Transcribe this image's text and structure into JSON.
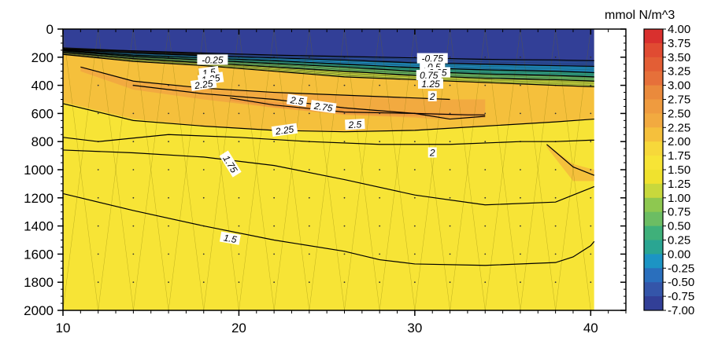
{
  "chart_data": {
    "type": "heatmap",
    "title": "",
    "xlabel": "",
    "ylabel": "",
    "xlim": [
      10,
      42
    ],
    "ylim": [
      2000,
      0
    ],
    "x_ticks": [
      10,
      20,
      30,
      40
    ],
    "x_tick_labels": [
      "10",
      "20",
      "30",
      "40"
    ],
    "y_ticks": [
      0,
      200,
      400,
      600,
      800,
      1000,
      1200,
      1400,
      1600,
      1800,
      2000
    ],
    "y_tick_labels": [
      "0",
      "200",
      "400",
      "600",
      "800",
      "1000",
      "1200",
      "1400",
      "1600",
      "1800",
      "2000"
    ],
    "data_x_max": 40.2,
    "colorbar": {
      "unit": "mmol N/m^3",
      "labels": [
        "4.00",
        "3.75",
        "3.50",
        "3.25",
        "3.00",
        "2.75",
        "2.50",
        "2.25",
        "2.00",
        "1.75",
        "1.50",
        "1.25",
        "1.00",
        "0.75",
        "0.50",
        "0.25",
        "0.00",
        "-0.25",
        "-0.50",
        "-0.75",
        "-7.00"
      ],
      "colors": [
        "#d9302e",
        "#e04b32",
        "#e35e35",
        "#e6703a",
        "#ea8a3c",
        "#ef9b3f",
        "#f2aa40",
        "#f5c03c",
        "#f7d83a",
        "#f7e436",
        "#f0e22e",
        "#c8d83c",
        "#8ec850",
        "#6cbd63",
        "#3fb07a",
        "#2aa592",
        "#1c94c4",
        "#2a6fbd",
        "#3455a9",
        "#323f97"
      ]
    },
    "field_levels": [
      {
        "range": [
          -7.0,
          -0.75
        ],
        "color": "#323f97",
        "depth": [
          0,
          150
        ]
      },
      {
        "range": [
          -0.75,
          0.0
        ],
        "color": "#2a6fbd",
        "depth": [
          150,
          230
        ]
      },
      {
        "range": [
          0.0,
          1.0
        ],
        "color": "#3fb07a",
        "depth": [
          230,
          300
        ]
      },
      {
        "range": [
          1.0,
          1.75
        ],
        "color": "#c8d83c",
        "depth": [
          300,
          350
        ]
      },
      {
        "range": [
          1.75,
          2.25
        ],
        "color": "#f7e436",
        "depth": [
          350,
          1000
        ]
      },
      {
        "range": [
          2.25,
          2.5
        ],
        "color": "#f5c03c",
        "depth": [
          380,
          700
        ]
      },
      {
        "range": [
          2.5,
          2.75
        ],
        "color": "#f2aa40",
        "depth": [
          420,
          640
        ]
      },
      {
        "range": [
          2.75,
          3.0
        ],
        "color": "#ef9b3f",
        "depth": [
          480,
          560
        ]
      }
    ],
    "contours": [
      {
        "level": 1.5,
        "points": [
          [
            10,
            1170
          ],
          [
            14,
            1290
          ],
          [
            18,
            1400
          ],
          [
            22,
            1500
          ],
          [
            26,
            1580
          ],
          [
            28,
            1640
          ],
          [
            30,
            1670
          ],
          [
            34,
            1680
          ],
          [
            38,
            1660
          ],
          [
            39,
            1620
          ],
          [
            40,
            1540
          ],
          [
            40.2,
            1510
          ]
        ]
      },
      {
        "level": 1.75,
        "points": [
          [
            10,
            860
          ],
          [
            14,
            880
          ],
          [
            18,
            910
          ],
          [
            22,
            970
          ],
          [
            26,
            1070
          ],
          [
            30,
            1180
          ],
          [
            34,
            1250
          ],
          [
            38,
            1230
          ],
          [
            40,
            1130
          ],
          [
            40.2,
            1120
          ]
        ]
      },
      {
        "level": 2.0,
        "points": [
          [
            10,
            770
          ],
          [
            12,
            800
          ],
          [
            16,
            750
          ],
          [
            20,
            770
          ],
          [
            24,
            800
          ],
          [
            28,
            820
          ],
          [
            32,
            820
          ],
          [
            36,
            800
          ],
          [
            38,
            800
          ],
          [
            40,
            790
          ],
          [
            40.2,
            790
          ]
        ]
      },
      {
        "level": 2.0,
        "points": [
          [
            37.5,
            820
          ],
          [
            39,
            980
          ],
          [
            40.2,
            1040
          ]
        ]
      },
      {
        "level": 2.25,
        "points": [
          [
            10,
            530
          ],
          [
            14,
            650
          ],
          [
            18,
            690
          ],
          [
            22,
            720
          ],
          [
            26,
            730
          ],
          [
            30,
            720
          ],
          [
            34,
            690
          ],
          [
            38,
            660
          ],
          [
            40.2,
            640
          ]
        ]
      },
      {
        "level": 2.25,
        "points": [
          [
            11,
            270
          ],
          [
            14,
            370
          ],
          [
            18,
            420
          ],
          [
            22,
            450
          ],
          [
            26,
            470
          ],
          [
            30,
            490
          ],
          [
            32,
            500
          ]
        ]
      },
      {
        "level": 2.5,
        "points": [
          [
            14,
            400
          ],
          [
            18,
            460
          ],
          [
            22,
            500
          ],
          [
            26,
            560
          ],
          [
            30,
            600
          ],
          [
            32,
            640
          ],
          [
            34,
            620
          ]
        ]
      },
      {
        "level": 2.75,
        "points": [
          [
            19.5,
            490
          ],
          [
            22,
            540
          ],
          [
            26,
            590
          ],
          [
            30,
            600
          ],
          [
            33,
            610
          ],
          [
            34,
            610
          ]
        ]
      },
      {
        "level": 1.75,
        "points": [
          [
            10,
            180
          ],
          [
            14,
            230
          ],
          [
            18,
            260
          ],
          [
            22,
            300
          ],
          [
            26,
            340
          ],
          [
            30,
            360
          ],
          [
            34,
            380
          ],
          [
            38,
            400
          ],
          [
            40.2,
            410
          ]
        ]
      },
      {
        "level": 1.25,
        "points": [
          [
            10,
            165
          ],
          [
            14,
            210
          ],
          [
            18,
            240
          ],
          [
            22,
            270
          ],
          [
            26,
            300
          ],
          [
            30,
            330
          ],
          [
            34,
            350
          ],
          [
            38,
            360
          ],
          [
            40.2,
            370
          ]
        ]
      },
      {
        "level": 0.75,
        "points": [
          [
            10,
            155
          ],
          [
            14,
            195
          ],
          [
            18,
            220
          ],
          [
            22,
            245
          ],
          [
            26,
            270
          ],
          [
            30,
            300
          ],
          [
            34,
            320
          ],
          [
            38,
            330
          ],
          [
            40.2,
            340
          ]
        ]
      },
      {
        "level": 0.25,
        "points": [
          [
            10,
            150
          ],
          [
            14,
            185
          ],
          [
            18,
            205
          ],
          [
            22,
            225
          ],
          [
            26,
            250
          ],
          [
            30,
            275
          ],
          [
            34,
            290
          ],
          [
            38,
            300
          ],
          [
            40.2,
            310
          ]
        ]
      },
      {
        "level": -0.25,
        "points": [
          [
            10,
            145
          ],
          [
            14,
            170
          ],
          [
            18,
            190
          ],
          [
            22,
            205
          ],
          [
            26,
            220
          ],
          [
            30,
            240
          ],
          [
            34,
            250
          ],
          [
            38,
            260
          ],
          [
            40.2,
            265
          ]
        ]
      },
      {
        "level": -0.75,
        "points": [
          [
            10,
            140
          ],
          [
            14,
            155
          ],
          [
            18,
            170
          ],
          [
            22,
            185
          ],
          [
            26,
            195
          ],
          [
            30,
            205
          ],
          [
            34,
            215
          ],
          [
            38,
            220
          ],
          [
            40.2,
            225
          ]
        ]
      }
    ],
    "contour_labels": [
      {
        "text": "-0.25",
        "x": 18.5,
        "y": 220,
        "rotate": 0
      },
      {
        "text": "1.5",
        "x": 18.3,
        "y": 310,
        "rotate": -8
      },
      {
        "text": "1.25",
        "x": 18.4,
        "y": 355,
        "rotate": -8
      },
      {
        "text": "2.25",
        "x": 18.0,
        "y": 395,
        "rotate": -8
      },
      {
        "text": "2.5",
        "x": 23.3,
        "y": 510,
        "rotate": 8
      },
      {
        "text": "2.75",
        "x": 24.8,
        "y": 555,
        "rotate": 8
      },
      {
        "text": "2.25",
        "x": 22.6,
        "y": 720,
        "rotate": -8
      },
      {
        "text": "2.5",
        "x": 26.6,
        "y": 680,
        "rotate": -3
      },
      {
        "text": "-0.75",
        "x": 31.0,
        "y": 210,
        "rotate": 0
      },
      {
        "text": "-0.5",
        "x": 31.0,
        "y": 270,
        "rotate": 0
      },
      {
        "text": "0.25",
        "x": 31.3,
        "y": 310,
        "rotate": 0
      },
      {
        "text": "0.75",
        "x": 30.8,
        "y": 330,
        "rotate": 0
      },
      {
        "text": "1.25",
        "x": 30.9,
        "y": 390,
        "rotate": 0
      },
      {
        "text": "2",
        "x": 31.0,
        "y": 480,
        "rotate": 0
      },
      {
        "text": "2",
        "x": 31.0,
        "y": 880,
        "rotate": 0
      },
      {
        "text": "1.75",
        "x": 19.5,
        "y": 960,
        "rotate": 58
      },
      {
        "text": "1.5",
        "x": 19.5,
        "y": 1490,
        "rotate": 10
      }
    ],
    "grid": true,
    "legend": "colorbar-right"
  }
}
